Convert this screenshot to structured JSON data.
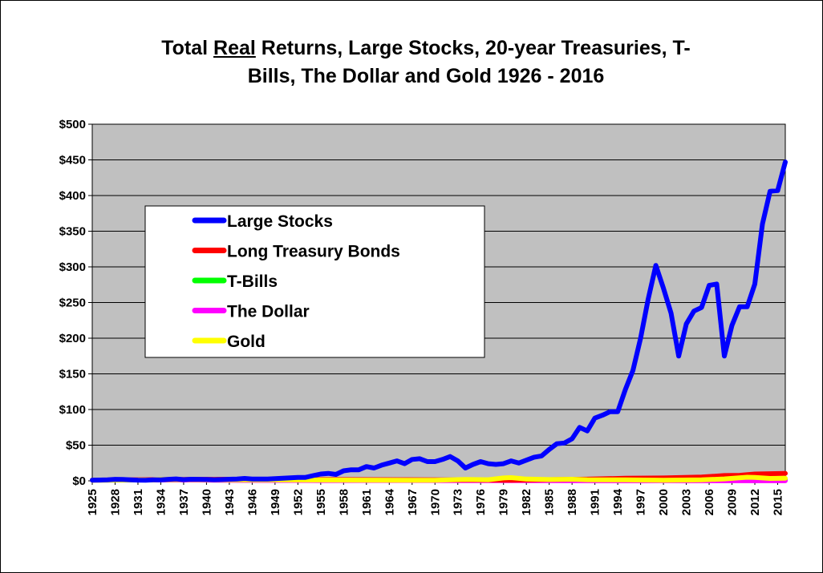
{
  "chart_data": {
    "type": "line",
    "title_parts": [
      "Total ",
      "Real",
      " Returns, Large Stocks, 20-year Treasuries, T-",
      "Bills, The Dollar and Gold 1926 - 2016"
    ],
    "xlabel": "",
    "ylabel": "",
    "ylim": [
      0,
      500
    ],
    "y_ticks": [
      0,
      50,
      100,
      150,
      200,
      250,
      300,
      350,
      400,
      450,
      500
    ],
    "y_tick_labels": [
      "$0",
      "$50",
      "$100",
      "$150",
      "$200",
      "$250",
      "$300",
      "$350",
      "$400",
      "$450",
      "$500"
    ],
    "x_range": [
      1925,
      2016
    ],
    "x_ticks": [
      1925,
      1928,
      1931,
      1934,
      1937,
      1940,
      1943,
      1946,
      1949,
      1952,
      1955,
      1958,
      1961,
      1964,
      1967,
      1970,
      1973,
      1976,
      1979,
      1982,
      1985,
      1988,
      1991,
      1994,
      1997,
      2000,
      2003,
      2006,
      2009,
      2012,
      2015
    ],
    "grid": true,
    "background": "#c0c0c0",
    "legend_position": "center-left",
    "series": [
      {
        "name": "Large Stocks",
        "color": "#0000ff",
        "x": [
          1925,
          1926,
          1927,
          1928,
          1929,
          1930,
          1931,
          1932,
          1933,
          1934,
          1935,
          1936,
          1937,
          1938,
          1939,
          1940,
          1941,
          1942,
          1943,
          1944,
          1945,
          1946,
          1947,
          1948,
          1949,
          1950,
          1951,
          1952,
          1953,
          1954,
          1955,
          1956,
          1957,
          1958,
          1959,
          1960,
          1961,
          1962,
          1963,
          1964,
          1965,
          1966,
          1967,
          1968,
          1969,
          1970,
          1971,
          1972,
          1973,
          1974,
          1975,
          1976,
          1977,
          1978,
          1979,
          1980,
          1981,
          1982,
          1983,
          1984,
          1985,
          1986,
          1987,
          1988,
          1989,
          1990,
          1991,
          1992,
          1993,
          1994,
          1995,
          1996,
          1997,
          1998,
          1999,
          2000,
          2001,
          2002,
          2003,
          2004,
          2005,
          2006,
          2007,
          2008,
          2009,
          2010,
          2011,
          2012,
          2013,
          2014,
          2015,
          2016
        ],
        "values": [
          1,
          1.1,
          1.5,
          2.1,
          1.9,
          1.5,
          1.0,
          0.9,
          1.4,
          1.4,
          2.1,
          2.7,
          1.7,
          2.2,
          2.1,
          1.9,
          1.6,
          1.8,
          2.2,
          2.6,
          3.4,
          2.6,
          2.5,
          2.6,
          3.0,
          3.7,
          4.2,
          4.8,
          4.8,
          7.3,
          9.5,
          10.5,
          9,
          14,
          15.5,
          15.5,
          20,
          18,
          22,
          25,
          28,
          24,
          30,
          31,
          27,
          27,
          30,
          34,
          28,
          18,
          23,
          27,
          24,
          23,
          24,
          28,
          25,
          29,
          33,
          35,
          44,
          52,
          53,
          59,
          75,
          70,
          88,
          92,
          97,
          97,
          128,
          155,
          200,
          255,
          302,
          270,
          235,
          175,
          220,
          238,
          243,
          274,
          276,
          175,
          218,
          244,
          244,
          276,
          360,
          406,
          407,
          447
        ]
      },
      {
        "name": "Long Treasury Bonds",
        "color": "#ff0000",
        "x": [
          1925,
          1930,
          1935,
          1940,
          1945,
          1950,
          1955,
          1960,
          1965,
          1970,
          1975,
          1980,
          1985,
          1990,
          1995,
          2000,
          2005,
          2008,
          2010,
          2012,
          2014,
          2016
        ],
        "values": [
          1,
          1.3,
          1.8,
          2.1,
          2.2,
          2.0,
          1.8,
          1.7,
          1.6,
          1.3,
          1.2,
          0.9,
          1.7,
          2.4,
          3.6,
          4.0,
          5.3,
          7.4,
          7.8,
          9.5,
          10.0,
          10.5
        ]
      },
      {
        "name": "T-Bills",
        "color": "#00ff00",
        "x": [
          1925,
          1935,
          1945,
          1955,
          1965,
          1975,
          1985,
          1995,
          2005,
          2016
        ],
        "values": [
          1,
          1.2,
          0.9,
          0.8,
          0.9,
          0.9,
          1.1,
          1.3,
          1.5,
          1.4
        ]
      },
      {
        "name": "The Dollar",
        "color": "#ff00ff",
        "x": [
          1925,
          1935,
          1945,
          1955,
          1965,
          1975,
          1985,
          1995,
          2005,
          2016
        ],
        "values": [
          1,
          1.2,
          0.7,
          0.5,
          0.45,
          0.3,
          0.18,
          0.14,
          0.11,
          0.09
        ]
      },
      {
        "name": "Gold",
        "color": "#ffff00",
        "x": [
          1925,
          1933,
          1934,
          1940,
          1950,
          1960,
          1970,
          1974,
          1977,
          1979,
          1980,
          1982,
          1985,
          1988,
          1990,
          1995,
          2000,
          2005,
          2008,
          2011,
          2012,
          2014,
          2016
        ],
        "values": [
          1,
          1.2,
          2.0,
          1.6,
          1.3,
          1.0,
          0.8,
          2.0,
          1.6,
          4.0,
          4.5,
          2.5,
          1.8,
          2.2,
          1.6,
          1.4,
          0.8,
          1.4,
          2.7,
          5.0,
          4.7,
          3.4,
          3.6
        ]
      }
    ]
  }
}
